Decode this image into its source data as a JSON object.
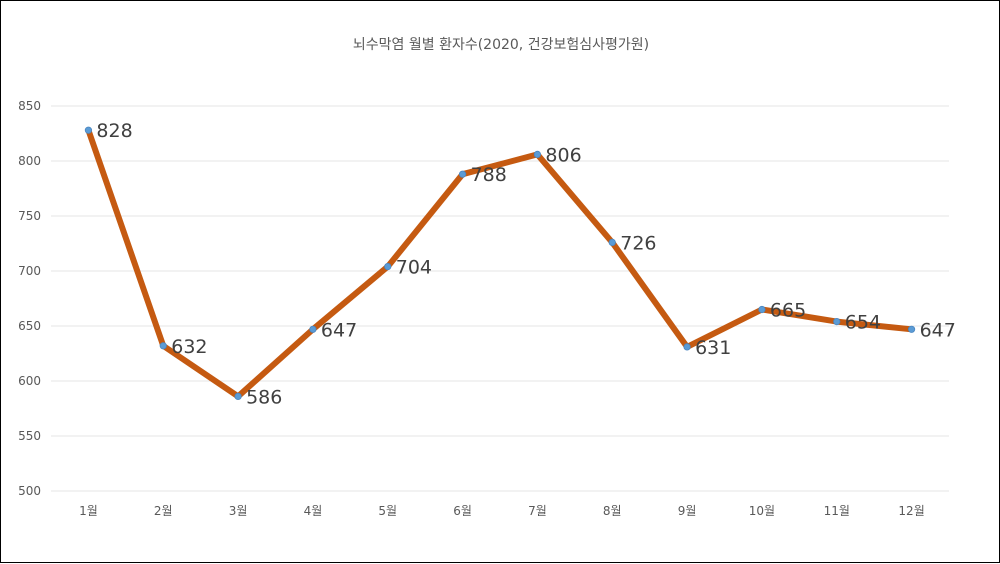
{
  "chart_data": {
    "type": "line",
    "title": "뇌수막염 월별 환자수(2020, 건강보험심사평가원)",
    "xlabel": "",
    "ylabel": "",
    "categories": [
      "1월",
      "2월",
      "3월",
      "4월",
      "5월",
      "6월",
      "7월",
      "8월",
      "9월",
      "10월",
      "11월",
      "12월"
    ],
    "series": [
      {
        "values": [
          828,
          632,
          586,
          647,
          704,
          788,
          806,
          726,
          631,
          665,
          654,
          647
        ]
      }
    ],
    "ylim": [
      500,
      850
    ],
    "yticks": [
      "500",
      "550",
      "600",
      "650",
      "700",
      "750",
      "800",
      "850"
    ],
    "grid": true,
    "legend": "none",
    "colors": {
      "line": "#C55A11",
      "marker": "#5B9BD5",
      "grid": "#E6E6E6"
    }
  }
}
